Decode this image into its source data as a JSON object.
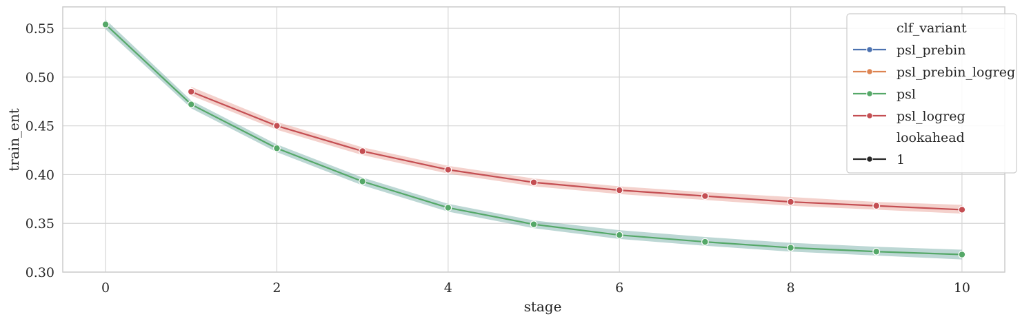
{
  "chart_data": {
    "type": "line",
    "title": "",
    "xlabel": "stage",
    "ylabel": "train_ent",
    "xlim": [
      -0.5,
      10.5
    ],
    "ylim": [
      0.3,
      0.572
    ],
    "xticks": [
      "0",
      "2",
      "4",
      "6",
      "8",
      "10"
    ],
    "yticks": [
      "0.30",
      "0.35",
      "0.40",
      "0.45",
      "0.50",
      "0.55"
    ],
    "grid": true,
    "legend_position": "top-right",
    "legend": {
      "hue_title": "clf_variant",
      "style_title": "lookahead",
      "style_entries": [
        {
          "label": "1",
          "color": "#262626"
        }
      ]
    },
    "series": [
      {
        "name": "psl_prebin",
        "color": "#4c72b0",
        "x": [],
        "y": []
      },
      {
        "name": "psl_prebin_logreg",
        "color": "#dd8452",
        "x": [],
        "y": []
      },
      {
        "name": "psl",
        "color": "#55a868",
        "band_color": "#6aa6a0",
        "x": [
          0,
          1,
          2,
          3,
          4,
          5,
          6,
          7,
          8,
          9,
          10
        ],
        "y": [
          0.554,
          0.472,
          0.427,
          0.393,
          0.366,
          0.349,
          0.338,
          0.331,
          0.325,
          0.321,
          0.318
        ],
        "ci_low": [
          0.549,
          0.468,
          0.423,
          0.389,
          0.362,
          0.345,
          0.334,
          0.327,
          0.321,
          0.317,
          0.313
        ],
        "ci_high": [
          0.559,
          0.476,
          0.431,
          0.397,
          0.37,
          0.353,
          0.343,
          0.336,
          0.33,
          0.326,
          0.323
        ]
      },
      {
        "name": "psl_logreg",
        "color": "#c44e52",
        "band_color": "#e69a8d",
        "x": [
          1,
          2,
          3,
          4,
          5,
          6,
          7,
          8,
          9,
          10
        ],
        "y": [
          0.485,
          0.45,
          0.424,
          0.405,
          0.392,
          0.384,
          0.378,
          0.372,
          0.368,
          0.364
        ],
        "ci_low": [
          0.481,
          0.446,
          0.42,
          0.401,
          0.388,
          0.38,
          0.374,
          0.368,
          0.364,
          0.36
        ],
        "ci_high": [
          0.49,
          0.454,
          0.428,
          0.409,
          0.396,
          0.388,
          0.382,
          0.377,
          0.372,
          0.369
        ]
      }
    ]
  }
}
